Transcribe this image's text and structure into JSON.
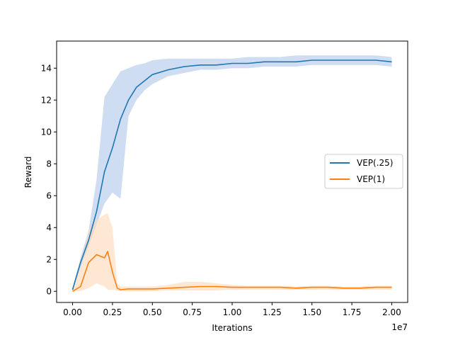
{
  "chart_data": {
    "type": "line",
    "xlabel": "Iterations",
    "ylabel": "Reward",
    "x_offset_label": "1e7",
    "xlim": [
      -0.1,
      2.1
    ],
    "ylim": [
      -0.7,
      15.7
    ],
    "xticks": [
      0.0,
      0.25,
      0.5,
      0.75,
      1.0,
      1.25,
      1.5,
      1.75,
      2.0
    ],
    "xtick_labels": [
      "0.00",
      "0.25",
      "0.50",
      "0.75",
      "1.00",
      "1.25",
      "1.50",
      "1.75",
      "2.00"
    ],
    "yticks": [
      0,
      2,
      4,
      6,
      8,
      10,
      12,
      14
    ],
    "ytick_labels": [
      "0",
      "2",
      "4",
      "6",
      "8",
      "10",
      "12",
      "14"
    ],
    "legend_position": "center-right",
    "series": [
      {
        "name": "VEP(.25)",
        "color": "#1f77b4",
        "band_color": "#aec7e8",
        "x": [
          0.0,
          0.05,
          0.1,
          0.15,
          0.2,
          0.25,
          0.3,
          0.35,
          0.4,
          0.45,
          0.5,
          0.6,
          0.7,
          0.8,
          0.9,
          1.0,
          1.1,
          1.2,
          1.3,
          1.4,
          1.5,
          1.6,
          1.7,
          1.8,
          1.9,
          2.0
        ],
        "y": [
          0.1,
          1.8,
          3.2,
          5.0,
          7.5,
          9.0,
          10.8,
          12.0,
          12.8,
          13.2,
          13.6,
          13.9,
          14.1,
          14.2,
          14.2,
          14.3,
          14.3,
          14.4,
          14.4,
          14.4,
          14.5,
          14.5,
          14.5,
          14.5,
          14.5,
          14.4
        ],
        "lower": [
          0.0,
          1.5,
          2.8,
          4.2,
          5.5,
          6.2,
          5.8,
          11.0,
          12.0,
          12.6,
          13.0,
          13.5,
          13.7,
          13.9,
          13.9,
          14.0,
          14.0,
          14.1,
          14.1,
          14.1,
          14.2,
          14.2,
          14.2,
          14.2,
          14.2,
          14.1
        ],
        "upper": [
          0.2,
          2.1,
          3.8,
          7.0,
          12.2,
          13.0,
          13.8,
          14.0,
          14.2,
          14.3,
          14.5,
          14.6,
          14.6,
          14.6,
          14.6,
          14.6,
          14.7,
          14.7,
          14.7,
          14.8,
          14.8,
          14.8,
          14.8,
          14.8,
          14.8,
          14.7
        ]
      },
      {
        "name": "VEP(1)",
        "color": "#ff7f0e",
        "band_color": "#ffd8b5",
        "x": [
          0.0,
          0.05,
          0.1,
          0.15,
          0.2,
          0.22,
          0.25,
          0.28,
          0.3,
          0.35,
          0.4,
          0.5,
          0.6,
          0.7,
          0.8,
          0.9,
          1.0,
          1.1,
          1.2,
          1.3,
          1.4,
          1.5,
          1.6,
          1.7,
          1.8,
          1.9,
          2.0
        ],
        "y": [
          0.0,
          0.3,
          1.8,
          2.3,
          2.1,
          2.5,
          1.2,
          0.2,
          0.1,
          0.15,
          0.15,
          0.15,
          0.2,
          0.25,
          0.3,
          0.3,
          0.25,
          0.25,
          0.25,
          0.25,
          0.2,
          0.25,
          0.25,
          0.2,
          0.2,
          0.25,
          0.25
        ],
        "lower": [
          0.0,
          0.0,
          0.2,
          0.5,
          0.3,
          0.1,
          0.1,
          0.05,
          0.0,
          0.0,
          0.0,
          0.0,
          0.05,
          0.05,
          0.05,
          0.05,
          0.1,
          0.1,
          0.1,
          0.1,
          0.1,
          0.1,
          0.1,
          0.1,
          0.1,
          0.1,
          0.1
        ],
        "upper": [
          0.1,
          1.5,
          3.8,
          4.5,
          4.8,
          4.9,
          4.0,
          0.5,
          0.3,
          0.3,
          0.3,
          0.3,
          0.4,
          0.6,
          0.6,
          0.5,
          0.4,
          0.35,
          0.35,
          0.35,
          0.3,
          0.35,
          0.35,
          0.3,
          0.3,
          0.35,
          0.35
        ]
      }
    ]
  }
}
